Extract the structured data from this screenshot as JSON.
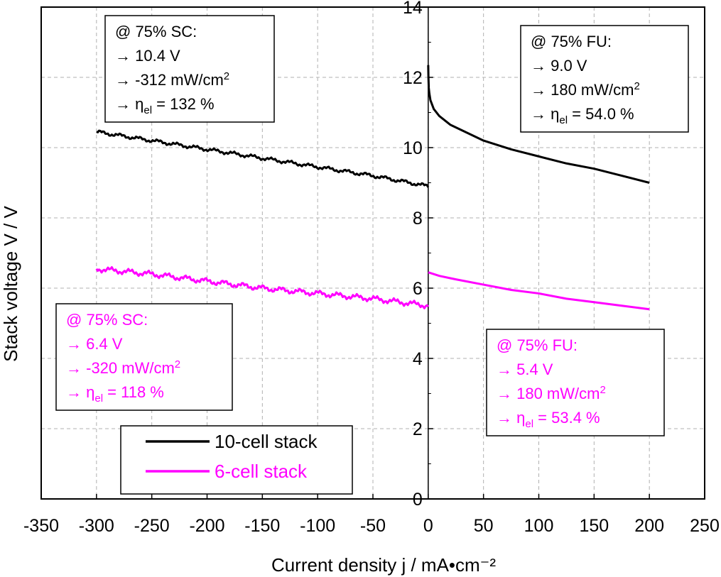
{
  "chart_data": {
    "type": "line",
    "xlabel": "Current density j / mA•cm⁻²",
    "ylabel": "Stack voltage V / V",
    "xlim": [
      -350,
      250
    ],
    "ylim": [
      0,
      14
    ],
    "xticks": [
      -350,
      -300,
      -250,
      -200,
      -150,
      -100,
      -50,
      0,
      50,
      100,
      150,
      200,
      250
    ],
    "yticks": [
      0,
      2,
      4,
      6,
      8,
      10,
      12,
      14
    ],
    "grid": true,
    "legend_position": "bottom-left",
    "series": [
      {
        "name": "10-cell stack",
        "color": "#000000",
        "segments": [
          {
            "x": [
              -300,
              -250,
              -200,
              -150,
              -100,
              -50,
              0
            ],
            "y": [
              10.45,
              10.2,
              9.95,
              9.7,
              9.45,
              9.2,
              8.9
            ]
          },
          {
            "x": [
              0,
              0.2,
              0.5,
              1,
              2,
              5,
              10,
              20,
              30,
              50,
              75,
              100,
              125,
              150,
              175,
              200
            ],
            "y": [
              12.35,
              12.0,
              11.7,
              11.55,
              11.35,
              11.1,
              10.9,
              10.65,
              10.5,
              10.2,
              9.95,
              9.75,
              9.55,
              9.4,
              9.2,
              9.0
            ]
          }
        ]
      },
      {
        "name": "6-cell stack",
        "color": "#FF00FF",
        "segments": [
          {
            "x": [
              -300,
              -250,
              -200,
              -150,
              -100,
              -50,
              0
            ],
            "y": [
              6.55,
              6.4,
              6.2,
              6.0,
              5.85,
              5.7,
              5.5
            ]
          },
          {
            "x": [
              0,
              10,
              25,
              50,
              75,
              100,
              125,
              150,
              175,
              200
            ],
            "y": [
              6.45,
              6.35,
              6.25,
              6.1,
              5.95,
              5.85,
              5.7,
              5.6,
              5.5,
              5.4
            ]
          }
        ]
      }
    ],
    "annotations": [
      {
        "id": "black-sc",
        "color": "#000000",
        "lines": [
          {
            "text": "@ 75% SC:"
          },
          {
            "text": "→ 10.4 V"
          },
          {
            "text": "→ -312 mW/cm",
            "sup": "2"
          },
          {
            "text": "→ η",
            "sub": "el",
            "tail": " = 132 %"
          }
        ]
      },
      {
        "id": "black-fu",
        "color": "#000000",
        "lines": [
          {
            "text": "@ 75% FU:"
          },
          {
            "text": "→ 9.0 V"
          },
          {
            "text": "→ 180 mW/cm",
            "sup": "2"
          },
          {
            "text": "→ η",
            "sub": "el",
            "tail": " = 54.0 %"
          }
        ]
      },
      {
        "id": "magenta-sc",
        "color": "#FF00FF",
        "lines": [
          {
            "text": "@ 75% SC:"
          },
          {
            "text": "→ 6.4 V"
          },
          {
            "text": "→ -320 mW/cm",
            "sup": "2"
          },
          {
            "text": "→ η",
            "sub": "el",
            "tail": " = 118 %"
          }
        ]
      },
      {
        "id": "magenta-fu",
        "color": "#FF00FF",
        "lines": [
          {
            "text": "@ 75% FU:"
          },
          {
            "text": "→ 5.4 V"
          },
          {
            "text": "→ 180 mW/cm",
            "sup": "2"
          },
          {
            "text": "→ η",
            "sub": "el",
            "tail": " = 53.4 %"
          }
        ]
      }
    ]
  }
}
